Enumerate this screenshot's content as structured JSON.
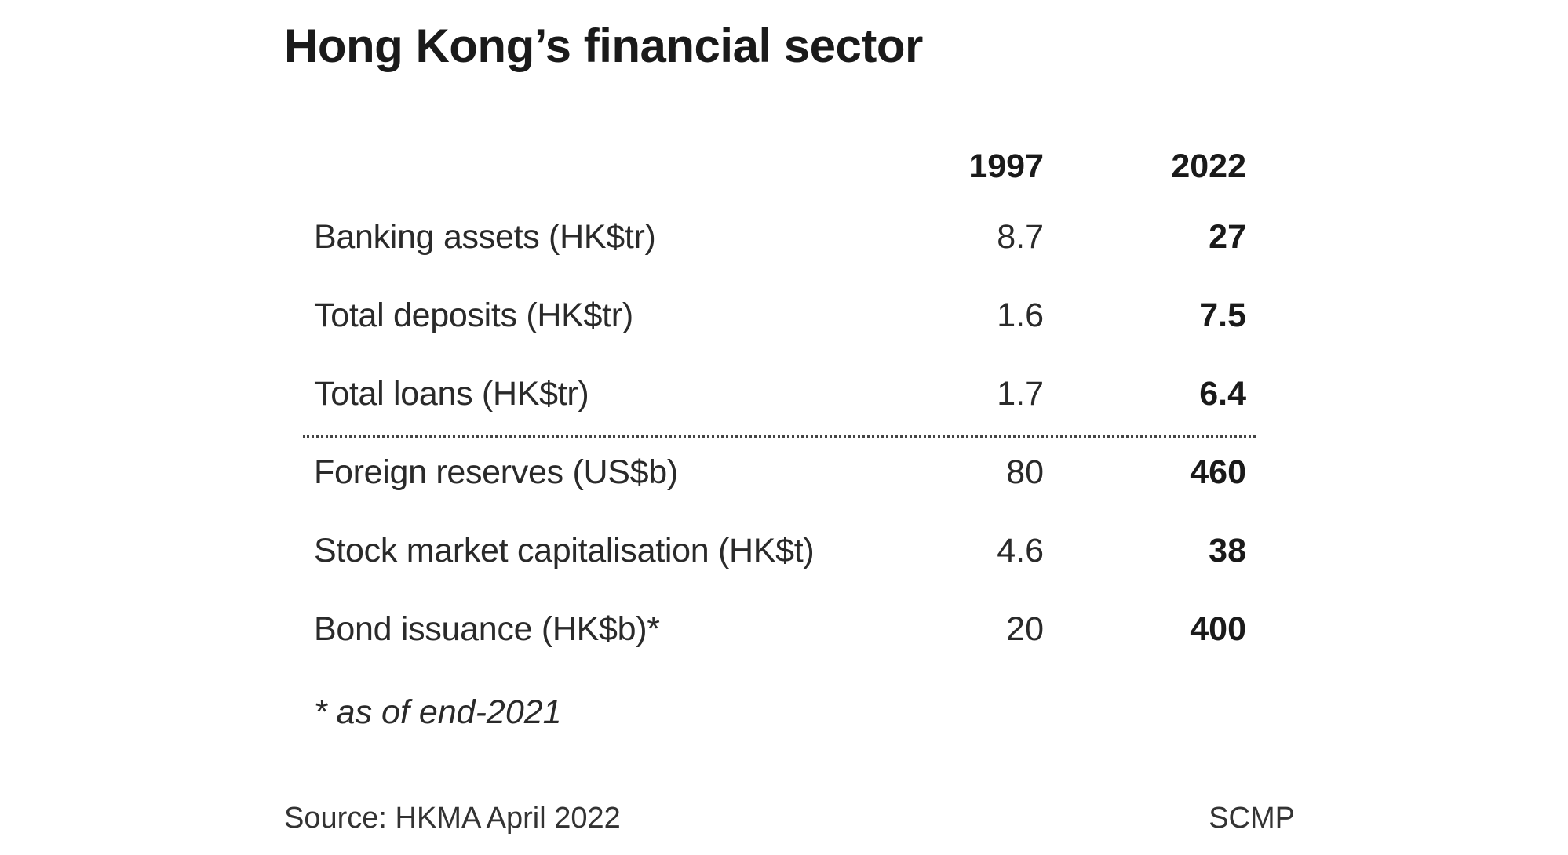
{
  "chart_data": {
    "type": "table",
    "title": "Hong Kong’s financial sector",
    "columns": [
      "1997",
      "2022"
    ],
    "rows": [
      {
        "label": "Banking assets (HK$tr)",
        "values": [
          "8.7",
          "27"
        ]
      },
      {
        "label": "Total deposits (HK$tr)",
        "values": [
          "1.6",
          "7.5"
        ]
      },
      {
        "label": "Total loans (HK$tr)",
        "values": [
          "1.7",
          "6.4"
        ]
      },
      {
        "label": "Foreign reserves (US$b)",
        "values": [
          "80",
          "460"
        ]
      },
      {
        "label": "Stock market capitalisation (HK$t)",
        "values": [
          "4.6",
          "38"
        ]
      },
      {
        "label": "Bond issuance (HK$b)*",
        "values": [
          "20",
          "400"
        ]
      }
    ],
    "footnote": "* as of end-2021",
    "source": "Source: HKMA April 2022",
    "credit": "SCMP"
  }
}
